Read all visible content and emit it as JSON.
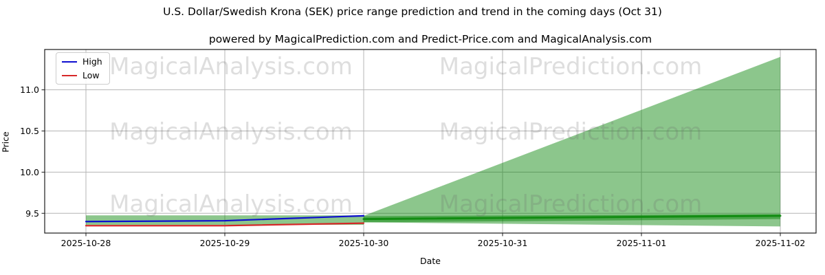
{
  "chart_data": {
    "type": "line",
    "title": "U.S. Dollar/Swedish Krona (SEK) price range prediction and trend in the coming days (Oct 31)",
    "subtitle": "powered by MagicalPrediction.com and Predict-Price.com and MagicalAnalysis.com",
    "xlabel": "Date",
    "ylabel": "Price",
    "x_categories": [
      "2025-10-28",
      "2025-10-29",
      "2025-10-30",
      "2025-10-31",
      "2025-11-01",
      "2025-11-02"
    ],
    "ytick_labels": [
      "9.5",
      "10.0",
      "10.5",
      "11.0"
    ],
    "ytick_values": [
      9.5,
      10.0,
      10.5,
      11.0
    ],
    "ylim": [
      9.26,
      11.49
    ],
    "grid": true,
    "grid_color": "#b4b4b4",
    "axis_color": "#1a1a1a",
    "legend": {
      "position": "upper-left",
      "items": [
        {
          "label": "High",
          "color": "#0d0dcf"
        },
        {
          "label": "Low",
          "color": "#d62728"
        }
      ]
    },
    "series": [
      {
        "name": "High",
        "color": "#0d0dcf",
        "width": 2.2,
        "opacity": 1,
        "x_index": [
          0,
          1,
          2
        ],
        "values": [
          9.4,
          9.41,
          9.47
        ]
      },
      {
        "name": "Low",
        "color": "#d62728",
        "width": 2.2,
        "opacity": 1,
        "x_index": [
          0,
          1,
          2
        ],
        "values": [
          9.35,
          9.35,
          9.38
        ]
      },
      {
        "name": "Prediction trend",
        "color": "#0c8a0c",
        "width": 3,
        "opacity": 0.9,
        "x_index": [
          2,
          5
        ],
        "values": [
          9.43,
          9.47
        ]
      }
    ],
    "bands": [
      {
        "name": "historical range",
        "x_index": [
          0,
          2
        ],
        "upper": [
          9.475,
          9.475
        ],
        "lower": [
          9.36,
          9.36
        ]
      },
      {
        "name": "prediction fan",
        "x_index": [
          2,
          5
        ],
        "upper": [
          9.47,
          11.4
        ],
        "lower": [
          9.39,
          9.34
        ]
      },
      {
        "name": "prediction low band",
        "x_index": [
          2,
          5
        ],
        "upper": [
          9.465,
          9.49
        ],
        "lower": [
          9.39,
          9.43
        ]
      }
    ],
    "band_color": "#008000",
    "band_opacity": 0.45,
    "watermark": {
      "texts": [
        "MagicalAnalysis.com",
        "MagicalPrediction.com"
      ]
    }
  }
}
